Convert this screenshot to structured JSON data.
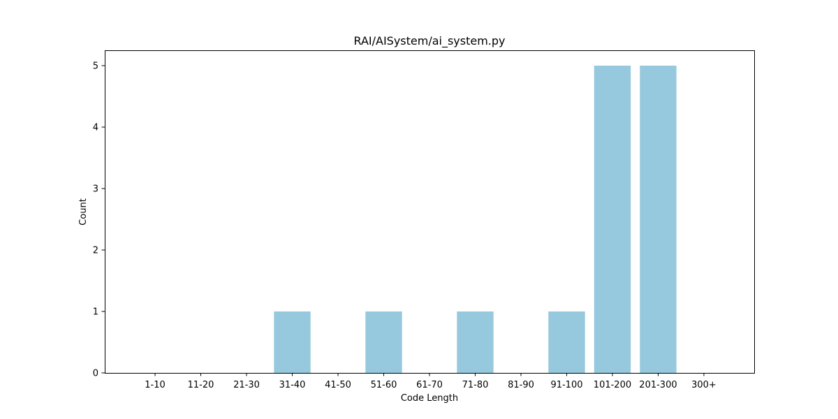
{
  "chart_data": {
    "type": "bar",
    "title": "RAI/AISystem/ai_system.py",
    "xlabel": "Code Length",
    "ylabel": "Count",
    "categories": [
      "1-10",
      "11-20",
      "21-30",
      "31-40",
      "41-50",
      "51-60",
      "61-70",
      "71-80",
      "81-90",
      "91-100",
      "101-200",
      "201-300",
      "300+"
    ],
    "values": [
      0,
      0,
      0,
      1,
      0,
      1,
      0,
      1,
      0,
      1,
      5,
      5,
      0
    ],
    "ylim": [
      0,
      5.25
    ],
    "yticks": [
      0,
      1,
      2,
      3,
      4,
      5
    ],
    "grid": false,
    "bar_color": "#96c9dd"
  }
}
